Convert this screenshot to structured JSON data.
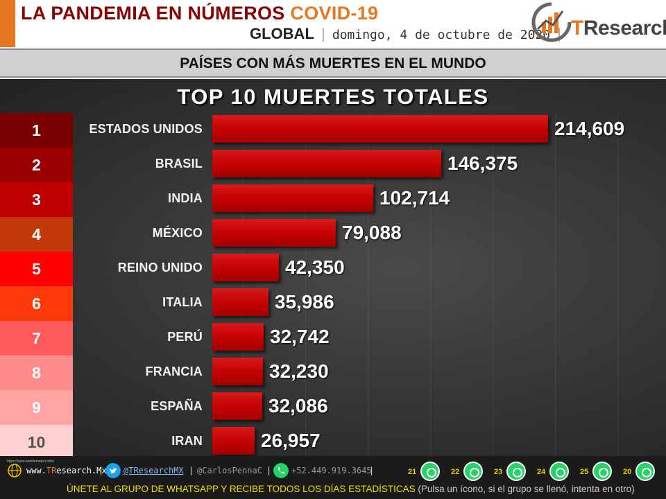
{
  "header": {
    "title_main": "LA PANDEMIA EN NÚMEROS",
    "title_highlight": "COVID-19",
    "scope": "GLOBAL",
    "separator": "|",
    "date": "domingo, 4 de octubre de 2020",
    "separator2": "|",
    "logo_brand_t": "T",
    "logo_brand_rest": "Research",
    "accent_color": "#e87722"
  },
  "subtitle": "PAÍSES CON MÁS MUERTES EN EL MUNDO",
  "chart_data": {
    "type": "bar",
    "orientation": "horizontal",
    "title": "TOP 10 MUERTES TOTALES",
    "ranks": [
      "1",
      "2",
      "3",
      "4",
      "5",
      "6",
      "7",
      "8",
      "9",
      "10"
    ],
    "rank_colors": [
      "#7a0000",
      "#9a0000",
      "#c00000",
      "#c23a0a",
      "#ff0000",
      "#ff3a0a",
      "#ff5a5a",
      "#ff8c8c",
      "#ffa3a3",
      "#ffd0d0"
    ],
    "rank_text_colors": [
      "#ffffff",
      "#ffffff",
      "#ffffff",
      "#ffffff",
      "#ffffff",
      "#ffffff",
      "#ffffff",
      "#ffffff",
      "#ffffff",
      "#555555"
    ],
    "categories": [
      "ESTADOS UNIDOS",
      "BRASIL",
      "INDIA",
      "MÉXICO",
      "REINO UNIDO",
      "ITALIA",
      "PERÚ",
      "FRANCIA",
      "ESPAÑA",
      "IRAN"
    ],
    "values": [
      214609,
      146375,
      102714,
      79088,
      42350,
      35986,
      32742,
      32230,
      32086,
      26957
    ],
    "value_labels": [
      "214,609",
      "146,375",
      "102,714",
      "79,088",
      "42,350",
      "35,986",
      "32,742",
      "32,230",
      "32,086",
      "26,957"
    ],
    "bar_color": "#c40000",
    "xlim": [
      0,
      214609
    ],
    "grid": false,
    "legend": "none"
  },
  "footer": {
    "website_pre": "www.",
    "website_t": "TR",
    "website_post": "esearch.Mx",
    "sep1": "|",
    "twitter": "@TResearchMX",
    "sep2": "|",
    "handle": "@CarlosPennaC",
    "sep3": "|",
    "phone": "+52.449.919.3645",
    "sep4": "|",
    "whatsapp_groups": [
      "21",
      "22",
      "23",
      "24",
      "25",
      "20"
    ],
    "tiny_link": "https://www.worldometers.info/",
    "cta": "ÚNETE AL GRUPO DE WHATSAPP Y RECIBE TODOS LOS DÍAS ESTADÍSTICAS",
    "cta_note": "(Pulsa un ícono, si el grupo se llenó, intenta en otro)"
  }
}
